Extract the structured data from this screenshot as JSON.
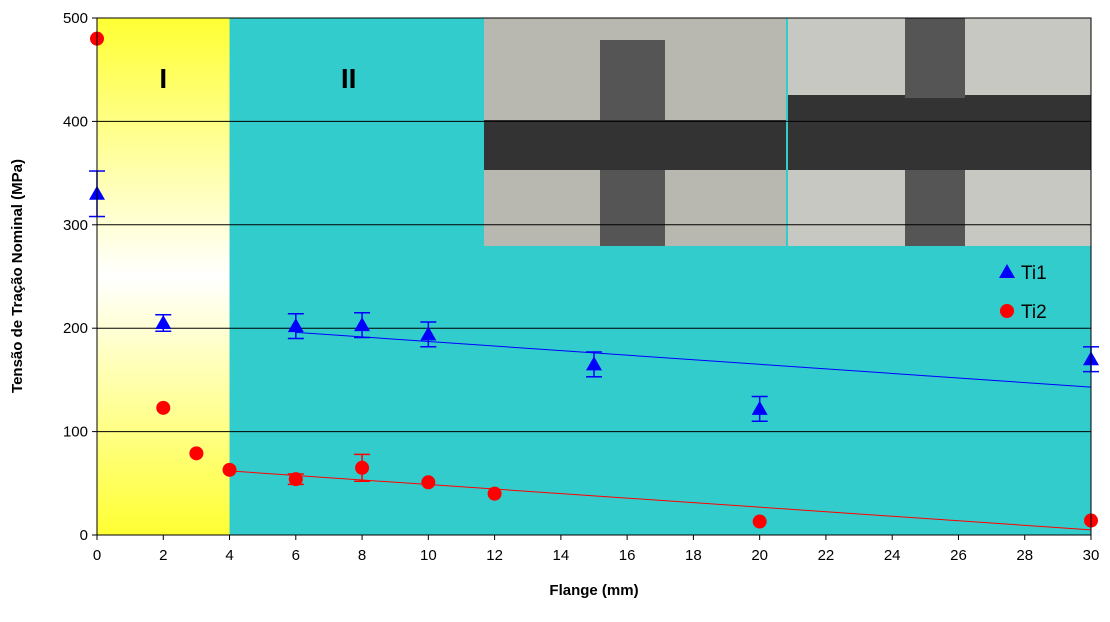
{
  "chart_data": {
    "type": "scatter",
    "x_label": "Flange (mm)",
    "y_label": "Tensão de Tração Nominal (MPa)",
    "xlim": [
      0,
      30
    ],
    "xticks": [
      0,
      2,
      4,
      6,
      8,
      10,
      12,
      14,
      16,
      18,
      20,
      22,
      24,
      26,
      28,
      30
    ],
    "ylim": [
      0,
      500
    ],
    "yticks": [
      0,
      100,
      200,
      300,
      400,
      500
    ],
    "grid": true,
    "legend": "right",
    "regions": [
      {
        "label": "I",
        "x": [
          0,
          4
        ],
        "color": "#ffff33"
      },
      {
        "label": "II",
        "x": [
          4,
          30
        ],
        "color": "#33cccc"
      }
    ],
    "series": [
      {
        "name": "Ti1",
        "color": "#0000ff",
        "marker": "triangle",
        "x": [
          0,
          2,
          6,
          8,
          10,
          15,
          20,
          30
        ],
        "values": [
          330,
          205,
          202,
          203,
          194,
          165,
          122,
          170
        ],
        "errors": [
          22,
          8,
          12,
          12,
          12,
          12,
          12,
          12
        ],
        "trend": {
          "x": [
            6,
            30
          ],
          "values": [
            196,
            143
          ]
        }
      },
      {
        "name": "Ti2",
        "color": "#ff0000",
        "marker": "circle",
        "x": [
          0,
          2,
          3,
          4,
          6,
          8,
          10,
          12,
          20,
          30
        ],
        "values": [
          480,
          123,
          79,
          63,
          54,
          65,
          51,
          40,
          13,
          14
        ],
        "errors": [
          0,
          0,
          0,
          0,
          5,
          13,
          0,
          0,
          0,
          0
        ],
        "trend": {
          "x": [
            4,
            30
          ],
          "values": [
            62,
            5
          ]
        }
      }
    ]
  }
}
